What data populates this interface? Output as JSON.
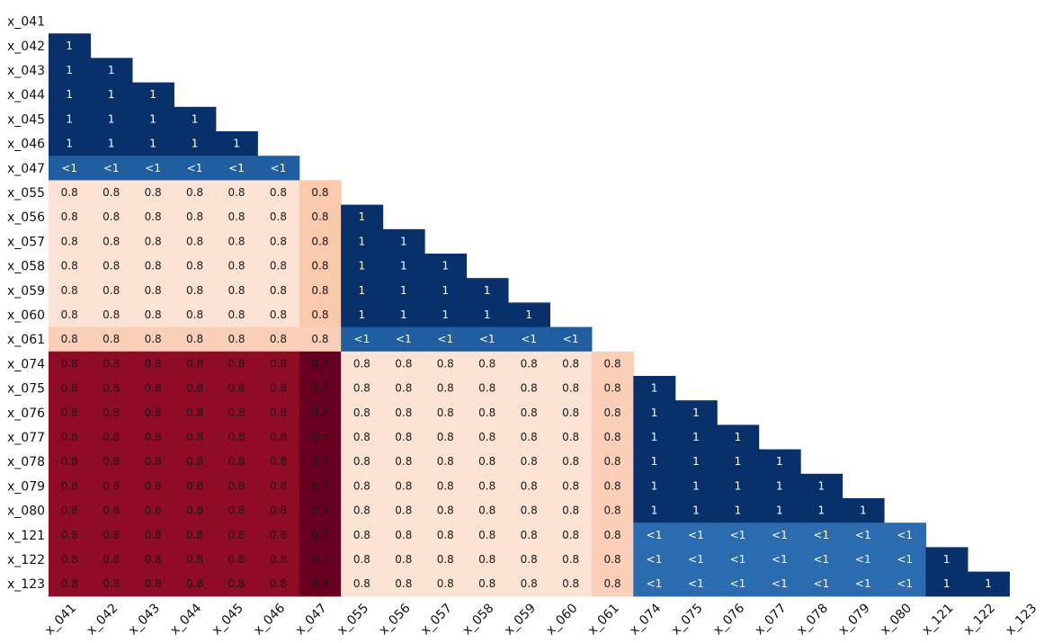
{
  "chart_data": {
    "type": "heatmap",
    "title": "",
    "xlabel": "",
    "ylabel": "",
    "row_labels": [
      "x_041",
      "x_042",
      "x_043",
      "x_044",
      "x_045",
      "x_046",
      "x_047",
      "x_055",
      "x_056",
      "x_057",
      "x_058",
      "x_059",
      "x_060",
      "x_061",
      "x_074",
      "x_075",
      "x_076",
      "x_077",
      "x_078",
      "x_079",
      "x_080",
      "x_121",
      "x_122",
      "x_123"
    ],
    "col_labels": [
      "x_041",
      "x_042",
      "x_043",
      "x_044",
      "x_045",
      "x_046",
      "x_047",
      "x_055",
      "x_056",
      "x_057",
      "x_058",
      "x_059",
      "x_060",
      "x_061",
      "x_074",
      "x_075",
      "x_076",
      "x_077",
      "x_078",
      "x_079",
      "x_080",
      "x_121",
      "x_122",
      "x_123"
    ],
    "cells": [
      [],
      [
        "1"
      ],
      [
        "1",
        "1"
      ],
      [
        "1",
        "1",
        "1"
      ],
      [
        "1",
        "1",
        "1",
        "1"
      ],
      [
        "1",
        "1",
        "1",
        "1",
        "1"
      ],
      [
        "<1",
        "<1",
        "<1",
        "<1",
        "<1",
        "<1"
      ],
      [
        "0.8",
        "0.8",
        "0.8",
        "0.8",
        "0.8",
        "0.8",
        "0.8"
      ],
      [
        "0.8",
        "0.8",
        "0.8",
        "0.8",
        "0.8",
        "0.8",
        "0.8",
        "1"
      ],
      [
        "0.8",
        "0.8",
        "0.8",
        "0.8",
        "0.8",
        "0.8",
        "0.8",
        "1",
        "1"
      ],
      [
        "0.8",
        "0.8",
        "0.8",
        "0.8",
        "0.8",
        "0.8",
        "0.8",
        "1",
        "1",
        "1"
      ],
      [
        "0.8",
        "0.8",
        "0.8",
        "0.8",
        "0.8",
        "0.8",
        "0.8",
        "1",
        "1",
        "1",
        "1"
      ],
      [
        "0.8",
        "0.8",
        "0.8",
        "0.8",
        "0.8",
        "0.8",
        "0.8",
        "1",
        "1",
        "1",
        "1",
        "1"
      ],
      [
        "0.8",
        "0.8",
        "0.8",
        "0.8",
        "0.8",
        "0.8",
        "0.8",
        "<1",
        "<1",
        "<1",
        "<1",
        "<1",
        "<1"
      ],
      [
        "0.8",
        "0.8",
        "0.8",
        "0.8",
        "0.8",
        "0.8",
        "0.7",
        "0.8",
        "0.8",
        "0.8",
        "0.8",
        "0.8",
        "0.8",
        "0.8"
      ],
      [
        "0.8",
        "0.8",
        "0.8",
        "0.8",
        "0.8",
        "0.8",
        "0.7",
        "0.8",
        "0.8",
        "0.8",
        "0.8",
        "0.8",
        "0.8",
        "0.8",
        "1"
      ],
      [
        "0.8",
        "0.8",
        "0.8",
        "0.8",
        "0.8",
        "0.8",
        "0.7",
        "0.8",
        "0.8",
        "0.8",
        "0.8",
        "0.8",
        "0.8",
        "0.8",
        "1",
        "1"
      ],
      [
        "0.8",
        "0.8",
        "0.8",
        "0.8",
        "0.8",
        "0.8",
        "0.7",
        "0.8",
        "0.8",
        "0.8",
        "0.8",
        "0.8",
        "0.8",
        "0.8",
        "1",
        "1",
        "1"
      ],
      [
        "0.8",
        "0.8",
        "0.8",
        "0.8",
        "0.8",
        "0.8",
        "0.7",
        "0.8",
        "0.8",
        "0.8",
        "0.8",
        "0.8",
        "0.8",
        "0.8",
        "1",
        "1",
        "1",
        "1"
      ],
      [
        "0.8",
        "0.8",
        "0.8",
        "0.8",
        "0.8",
        "0.8",
        "0.7",
        "0.8",
        "0.8",
        "0.8",
        "0.8",
        "0.8",
        "0.8",
        "0.8",
        "1",
        "1",
        "1",
        "1",
        "1"
      ],
      [
        "0.8",
        "0.8",
        "0.8",
        "0.8",
        "0.8",
        "0.8",
        "0.7",
        "0.8",
        "0.8",
        "0.8",
        "0.8",
        "0.8",
        "0.8",
        "0.8",
        "1",
        "1",
        "1",
        "1",
        "1",
        "1"
      ],
      [
        "0.8",
        "0.8",
        "0.8",
        "0.8",
        "0.8",
        "0.8",
        "0.7",
        "0.8",
        "0.8",
        "0.8",
        "0.8",
        "0.8",
        "0.8",
        "0.8",
        "<1",
        "<1",
        "<1",
        "<1",
        "<1",
        "<1",
        "<1"
      ],
      [
        "0.8",
        "0.8",
        "0.8",
        "0.8",
        "0.8",
        "0.8",
        "0.7",
        "0.8",
        "0.8",
        "0.8",
        "0.8",
        "0.8",
        "0.8",
        "0.8",
        "<1",
        "<1",
        "<1",
        "<1",
        "<1",
        "<1",
        "<1",
        "1"
      ],
      [
        "0.8",
        "0.8",
        "0.8",
        "0.8",
        "0.8",
        "0.8",
        "0.7",
        "0.8",
        "0.8",
        "0.8",
        "0.8",
        "0.8",
        "0.8",
        "0.8",
        "<1",
        "<1",
        "<1",
        "<1",
        "<1",
        "<1",
        "<1",
        "1",
        "1"
      ]
    ],
    "cell_colors": {
      "one": "#08306b",
      "lt_one_dark": "#1f5ea0",
      "lt_one_mid": "#2b6cb0",
      "peach_light": "#fde3d4",
      "peach_mid": "#fcd0b8",
      "peach_dark": "#fbc9ac",
      "red": "#8f0b26",
      "red_dark": "#67001f"
    },
    "grid": false,
    "legend": "none"
  }
}
